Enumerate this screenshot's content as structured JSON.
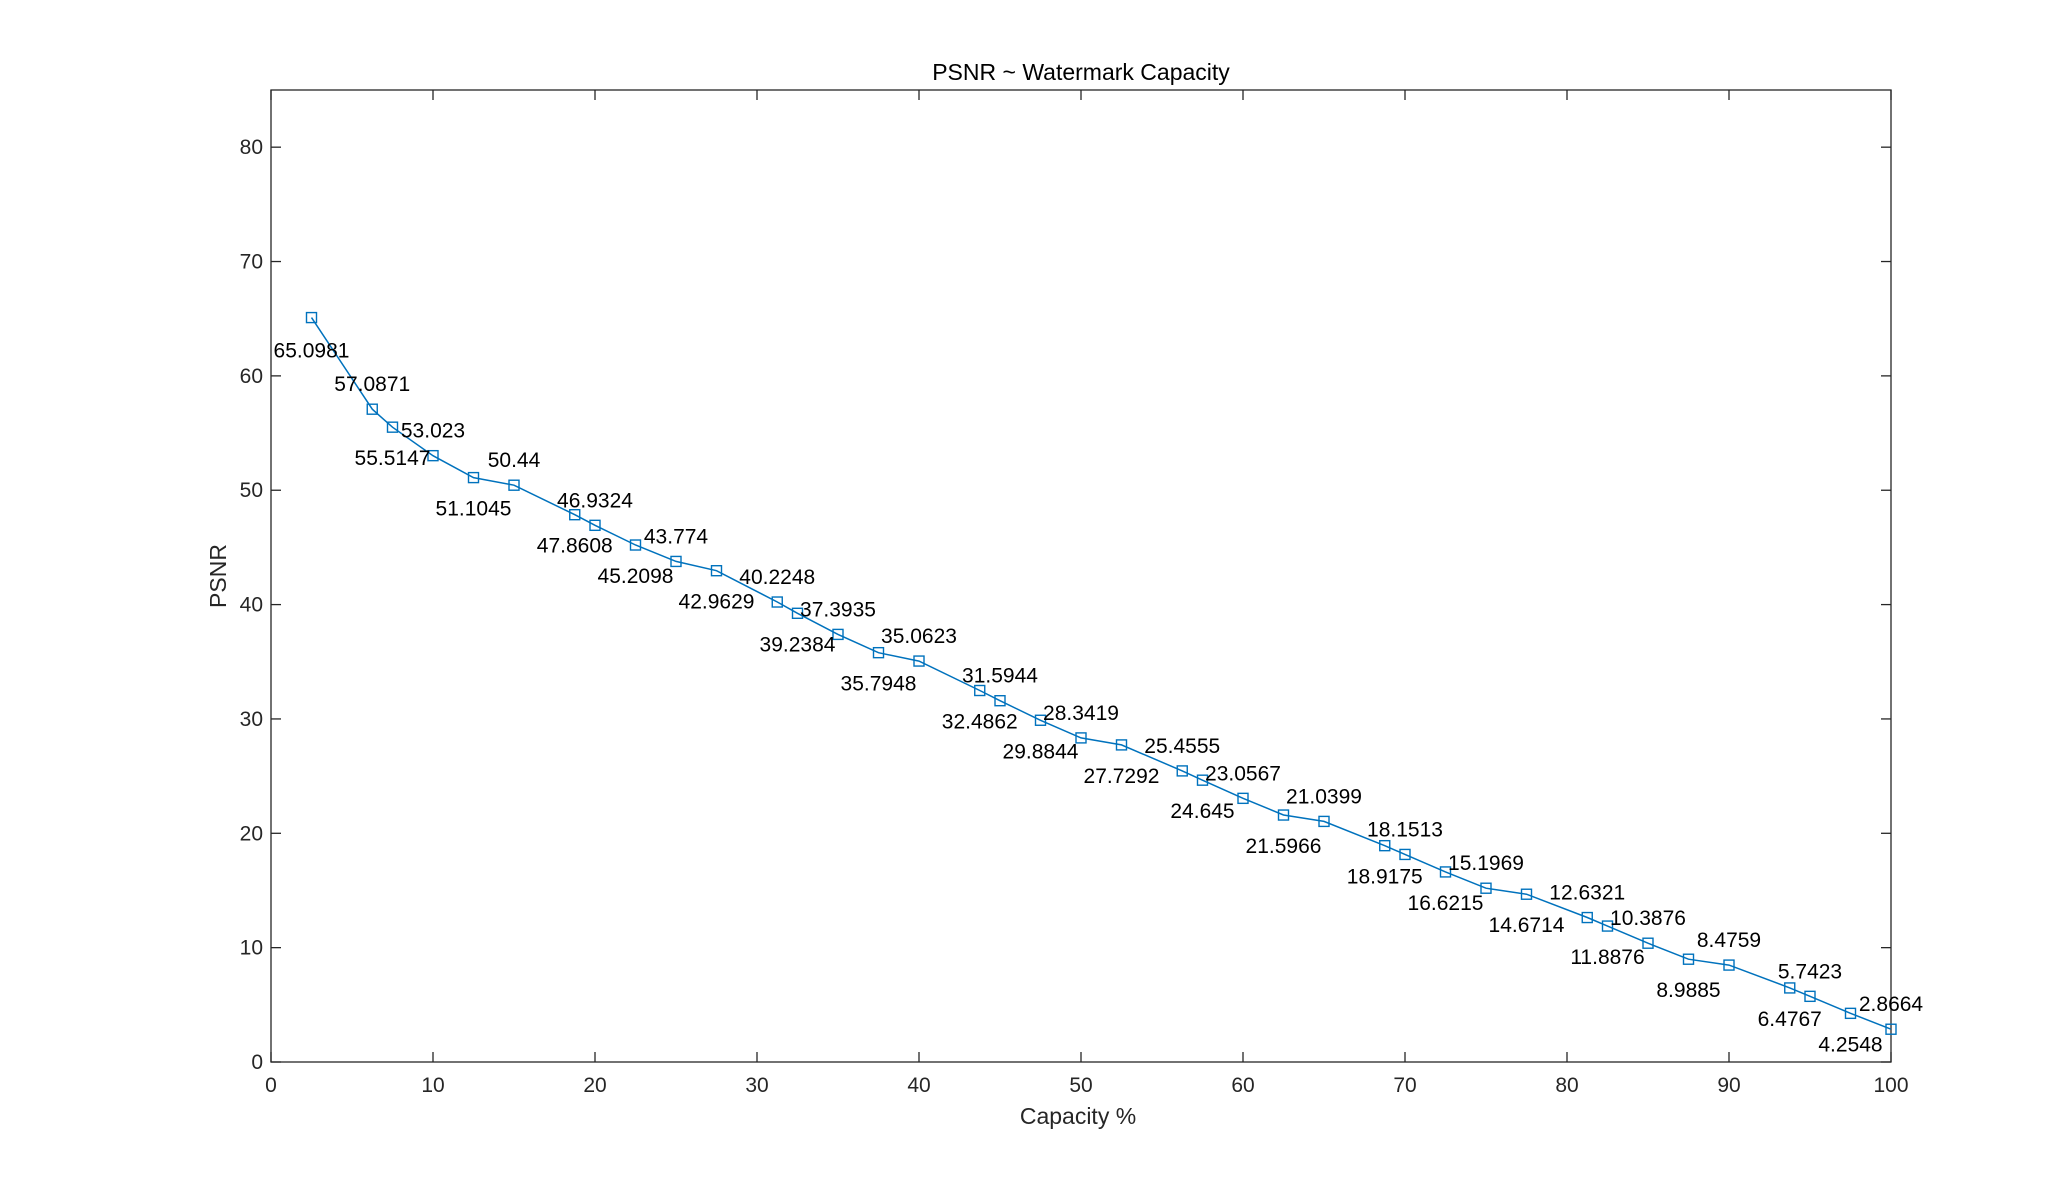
{
  "chart_data": {
    "type": "line",
    "title": "PSNR ~ Watermark Capacity",
    "xlabel": "Capacity %",
    "ylabel": "PSNR",
    "xlim": [
      0,
      100
    ],
    "ylim": [
      0,
      85
    ],
    "xticks": [
      "0",
      "10",
      "20",
      "30",
      "40",
      "50",
      "60",
      "70",
      "80",
      "90",
      "100"
    ],
    "yticks": [
      "0",
      "10",
      "20",
      "30",
      "40",
      "50",
      "60",
      "70",
      "80"
    ],
    "grid": false,
    "marker": "square",
    "series_color": "#0072BD",
    "series": [
      {
        "x": [
          2.5,
          6.25,
          7.5,
          10,
          12.5,
          15,
          18.75,
          20,
          22.5,
          25,
          27.5,
          31.25,
          32.5,
          35,
          37.5,
          40,
          43.75,
          45,
          47.5,
          50,
          52.5,
          56.25,
          57.5,
          60,
          62.5,
          65,
          68.75,
          70,
          72.5,
          75,
          77.5,
          81.25,
          82.5,
          85,
          87.5,
          90,
          93.75,
          95,
          97.5,
          100
        ],
        "values": [
          65.0981,
          57.0871,
          55.5147,
          53.023,
          51.1045,
          50.44,
          47.8608,
          46.9324,
          45.2098,
          43.774,
          42.9629,
          40.2248,
          39.2384,
          37.3935,
          35.7948,
          35.0623,
          32.4862,
          31.5944,
          29.8844,
          28.3419,
          27.7292,
          25.4555,
          24.645,
          23.0567,
          21.5966,
          21.0399,
          18.9175,
          18.1513,
          16.6215,
          15.1969,
          14.6714,
          12.6321,
          11.8876,
          10.3876,
          8.9885,
          8.4759,
          6.4767,
          5.7423,
          4.2548,
          2.8664
        ],
        "labels": [
          "65.0981",
          "57.0871",
          "55.5147",
          "53.023",
          "51.1045",
          "50.44",
          "47.8608",
          "46.9324",
          "45.2098",
          "43.774",
          "42.9629",
          "40.2248",
          "39.2384",
          "37.3935",
          "35.7948",
          "35.0623",
          "32.4862",
          "31.5944",
          "29.8844",
          "28.3419",
          "27.7292",
          "25.4555",
          "24.645",
          "23.0567",
          "21.5966",
          "21.0399",
          "18.9175",
          "18.1513",
          "16.6215",
          "15.1969",
          "14.6714",
          "12.6321",
          "11.8876",
          "10.3876",
          "8.9885",
          "8.4759",
          "6.4767",
          "5.7423",
          "4.2548",
          "2.8664"
        ]
      }
    ]
  }
}
